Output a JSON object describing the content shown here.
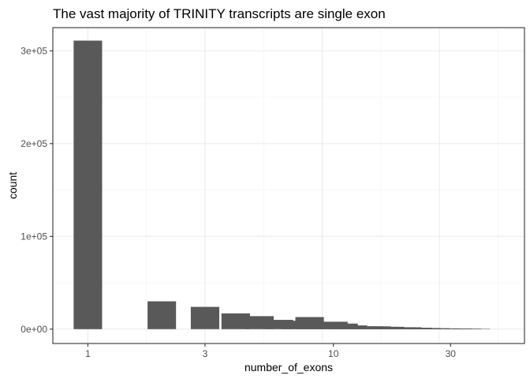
{
  "chart_data": {
    "type": "bar",
    "title": "The vast majority of TRINITY transcripts are single exon",
    "xlabel": "number_of_exons",
    "ylabel": "count",
    "x_scale": "log10",
    "xlim": [
      0.72,
      60
    ],
    "ylim": [
      -15500,
      325000
    ],
    "x_ticks": [
      {
        "value": 1,
        "label": "1"
      },
      {
        "value": 3,
        "label": "3"
      },
      {
        "value": 10,
        "label": "10"
      },
      {
        "value": 30,
        "label": "30"
      }
    ],
    "y_ticks": [
      {
        "value": 0,
        "label": "0e+00"
      },
      {
        "value": 100000,
        "label": "1e+05"
      },
      {
        "value": 200000,
        "label": "2e+05"
      },
      {
        "value": 300000,
        "label": "3e+05"
      }
    ],
    "grid": true,
    "bar_color": "#595959",
    "series": [
      {
        "x": [
          1,
          2,
          3,
          4,
          5,
          6,
          7,
          8,
          9,
          10,
          11,
          12,
          13,
          14,
          15,
          16,
          17,
          19,
          20,
          22,
          24,
          26,
          29,
          32,
          35,
          38
        ],
        "values": [
          311000,
          30000,
          24000,
          17000,
          14000,
          10000,
          9000,
          13000,
          4000,
          8000,
          6000,
          4000,
          3000,
          3000,
          3000,
          2500,
          2500,
          2000,
          2000,
          1500,
          1200,
          1000,
          800,
          700,
          500,
          400
        ]
      }
    ]
  }
}
